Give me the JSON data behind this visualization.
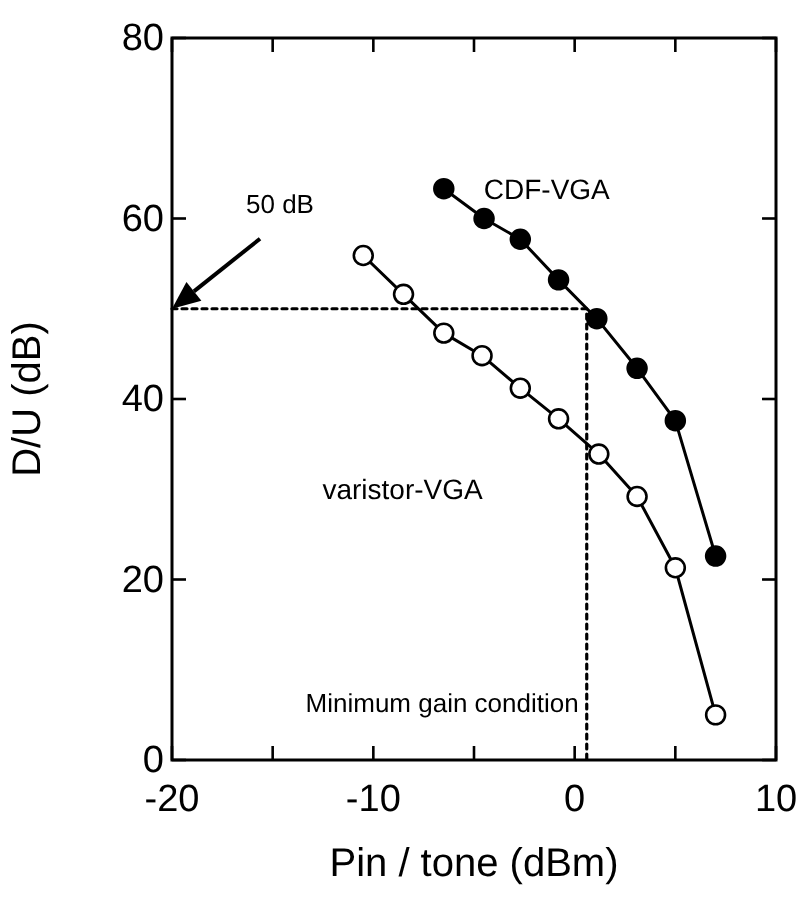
{
  "chart_data": {
    "type": "line",
    "xlabel": "Pin / tone (dBm)",
    "ylabel": "D/U (dB)",
    "xlim": [
      -20,
      10
    ],
    "xticks": [
      -20,
      {
        "value": -15,
        "label": null
      },
      -10,
      {
        "value": -5,
        "label": null
      },
      0,
      {
        "value": 5,
        "label": null
      },
      10
    ],
    "ylim": [
      0,
      80
    ],
    "yticks": [
      0,
      20,
      40,
      60,
      80
    ],
    "grid": false,
    "series": [
      {
        "name": "CDF-VGA",
        "color": "#000000",
        "marker": "circle",
        "x": [
          -6.5,
          -4.5,
          -2.7,
          -0.8,
          1.1,
          3.1,
          5.0,
          7.0
        ],
        "values": [
          63.3,
          60.0,
          57.7,
          53.2,
          48.9,
          43.4,
          37.6,
          22.6
        ]
      },
      {
        "name": "varistor-VGA",
        "color": "#000000",
        "marker": "circle",
        "x": [
          -10.5,
          -8.5,
          -6.5,
          -4.6,
          -2.7,
          -0.8,
          1.2,
          3.1,
          5.0,
          7.0
        ],
        "values": [
          55.9,
          51.6,
          47.3,
          44.8,
          41.2,
          37.8,
          33.9,
          29.2,
          21.3,
          5.0
        ]
      },
      {
        "type": "line",
        "color": "#000000",
        "marker": "none",
        "line_style": "dotted",
        "x": [
          -20,
          0.6,
          0.6
        ],
        "values": [
          50,
          50,
          0
        ]
      }
    ],
    "annotations": [
      "50 dB",
      "Minimum gain condition"
    ]
  }
}
